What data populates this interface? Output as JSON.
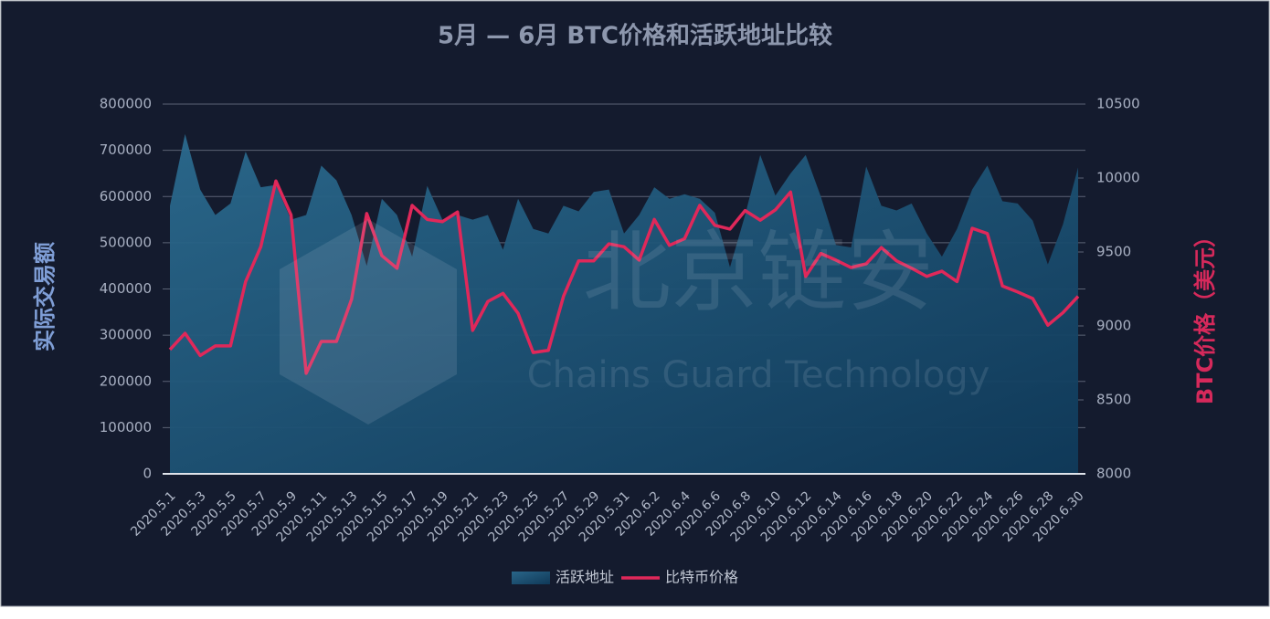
{
  "chart_data": {
    "type": "area-line",
    "title": "5月 — 6月 BTC价格和活跃地址比较",
    "y_label": "实际交易额",
    "y2_label": "BTC价格（美元）",
    "watermark": [
      "北京链安",
      "Chains Guard Technology"
    ],
    "categories": [
      "2020.5.1",
      null,
      "2020.5.3",
      null,
      "2020.5.5",
      null,
      "2020.5.7",
      null,
      "2020.5.9",
      null,
      "2020.5.11",
      null,
      "2020.5.13",
      null,
      "2020.5.15",
      null,
      "2020.5.17",
      null,
      "2020.5.19",
      null,
      "2020.5.21",
      null,
      "2020.5.23",
      null,
      "2020.5.25",
      null,
      "2020.5.27",
      null,
      "2020.5.29",
      null,
      "2020.5.31",
      null,
      "2020.6.2",
      null,
      "2020.6.4",
      null,
      "2020.6.6",
      null,
      "2020.6.8",
      null,
      "2020.6.10",
      null,
      "2020.6.12",
      null,
      "2020.6.14",
      null,
      "2020.6.16",
      null,
      "2020.6.18",
      null,
      "2020.6.20",
      null,
      "2020.6.22",
      null,
      "2020.6.24",
      null,
      "2020.6.26",
      null,
      "2020.6.28",
      null,
      "2020.6.30"
    ],
    "series": [
      {
        "name": "活跃地址",
        "type": "area",
        "color": "#2a6385",
        "values": [
          580000,
          735000,
          615000,
          560000,
          585000,
          697000,
          620000,
          625000,
          550000,
          560000,
          667000,
          635000,
          560000,
          450000,
          595000,
          560000,
          470000,
          623000,
          550000,
          560000,
          550000,
          560000,
          485000,
          595000,
          530000,
          520000,
          580000,
          568000,
          610000,
          615000,
          520000,
          560000,
          620000,
          595000,
          605000,
          595000,
          565000,
          447000,
          560000,
          690000,
          602000,
          650000,
          690000,
          600000,
          495000,
          490000,
          665000,
          580000,
          570000,
          585000,
          520000,
          470000,
          530000,
          615000,
          667000,
          590000,
          585000,
          548000,
          453000,
          540000,
          663000
        ]
      },
      {
        "name": "比特币价格",
        "type": "line",
        "axis": "y2",
        "color": "#e0285a",
        "values": [
          8840,
          8950,
          8800,
          8865,
          8865,
          9300,
          9535,
          9980,
          9750,
          8680,
          8895,
          8895,
          9180,
          9760,
          9475,
          9390,
          9815,
          9720,
          9705,
          9770,
          8970,
          9165,
          9220,
          9085,
          8820,
          8835,
          9200,
          9440,
          9440,
          9555,
          9535,
          9445,
          9720,
          9545,
          9590,
          9815,
          9680,
          9655,
          9780,
          9715,
          9785,
          9905,
          9335,
          9490,
          9445,
          9395,
          9420,
          9530,
          9440,
          9390,
          9335,
          9370,
          9300,
          9660,
          9625,
          9270,
          9230,
          9185,
          9005,
          9090,
          9200
        ]
      }
    ],
    "ylim": [
      0,
      800000
    ],
    "yticks": [
      0,
      100000,
      200000,
      300000,
      400000,
      500000,
      600000,
      700000,
      800000
    ],
    "y2lim": [
      8000,
      10500
    ],
    "y2ticks": [
      8000,
      8500,
      9000,
      9500,
      10000,
      10500
    ],
    "grid": true,
    "legend": "bottom"
  }
}
